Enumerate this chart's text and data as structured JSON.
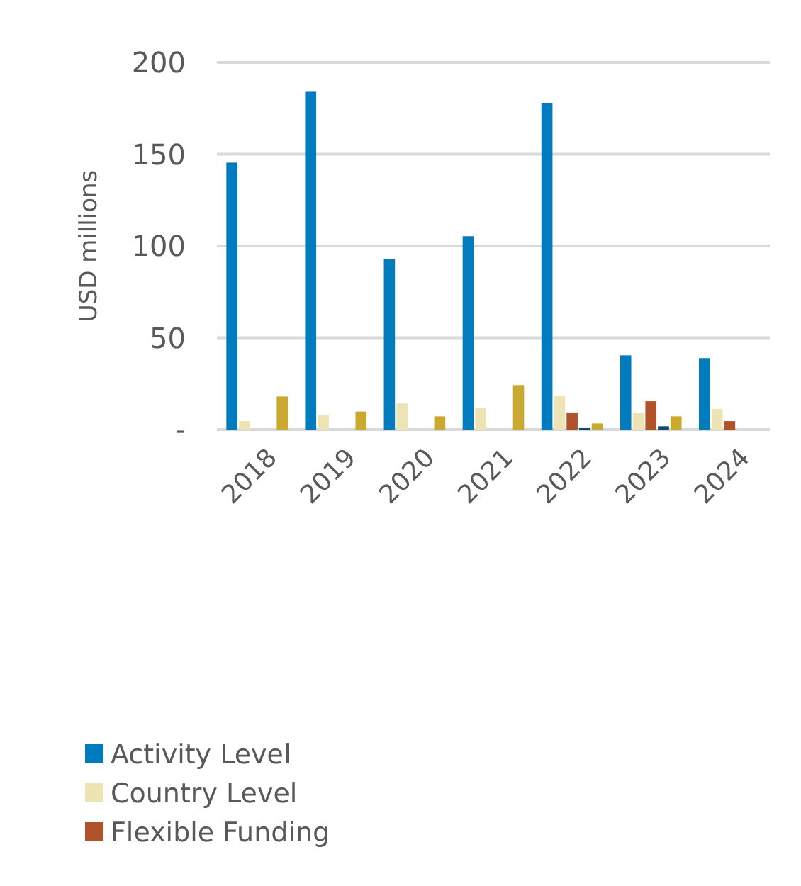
{
  "chart_data": {
    "type": "bar",
    "ylabel": "USD millions",
    "categories": [
      "2018",
      "2019",
      "2020",
      "2021",
      "2022",
      "2023",
      "2024"
    ],
    "series": [
      {
        "name": "Activity Level",
        "color": "#007bbd",
        "values": [
          145.4,
          184,
          92.9,
          105.3,
          177.6,
          40.4,
          38.9
        ]
      },
      {
        "name": "Country Level",
        "color": "#ede3b4",
        "values": [
          4.6,
          7.7,
          14.2,
          11.6,
          18.3,
          9,
          11.3
        ]
      },
      {
        "name": "Flexible Funding",
        "color": "#b0532a",
        "values": [
          null,
          null,
          null,
          null,
          9.3,
          15.4,
          4.6
        ]
      },
      {
        "color": "#0a4a75",
        "values": [
          null,
          null,
          null,
          null,
          0.8,
          1.8,
          null
        ]
      },
      {
        "color": "#c9a92e",
        "values": [
          18,
          9.8,
          7.2,
          24.2,
          3.3,
          7.2,
          null
        ]
      }
    ],
    "ylim": [
      0,
      200
    ],
    "yticks": [
      {
        "value": 0,
        "label": "-"
      },
      50,
      100,
      150,
      200
    ],
    "grid": "y",
    "legend": "bottom left"
  }
}
